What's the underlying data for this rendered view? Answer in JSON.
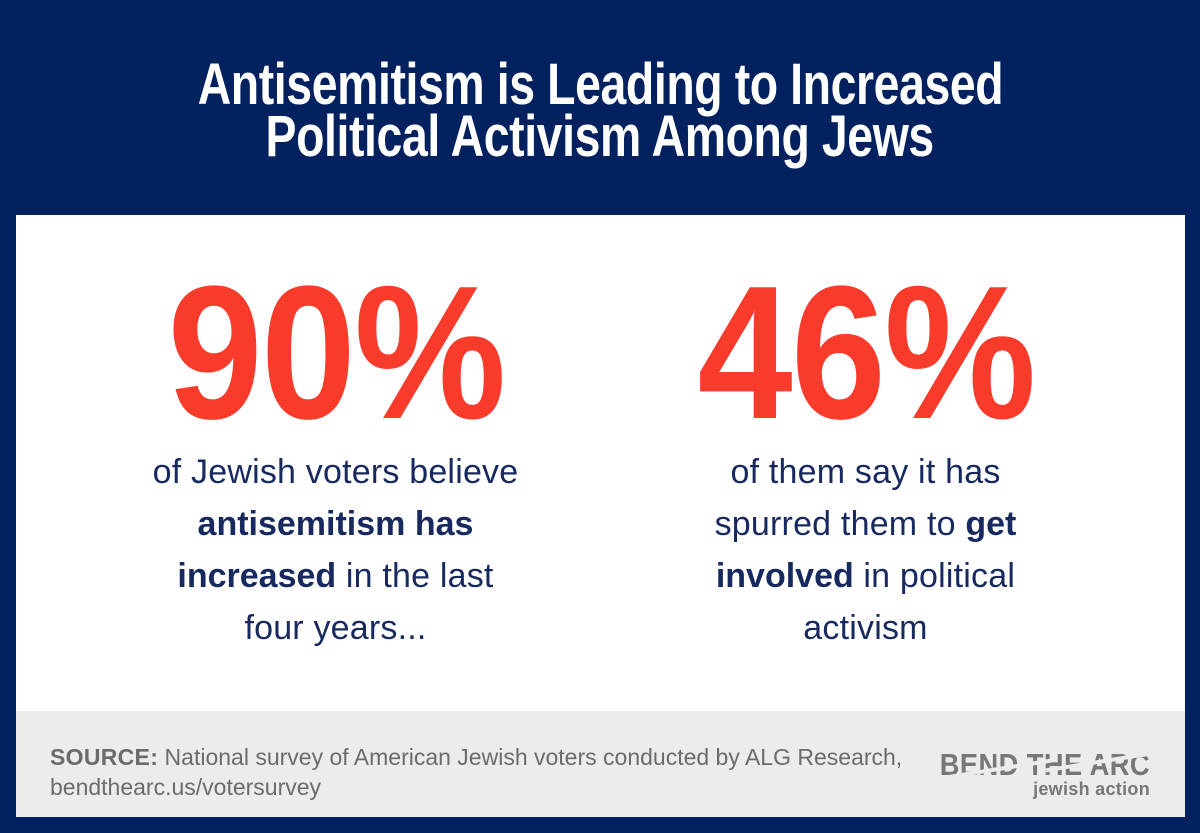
{
  "chart_data": {
    "type": "table",
    "title": "Antisemitism is Leading to Increased Political Activism Among Jews",
    "categories": [
      "Jewish voters who believe antisemitism has increased in the last four years",
      "Of them, say it has spurred them to get involved in political activism"
    ],
    "values": [
      90,
      46
    ],
    "unit": "%",
    "source": "National survey of American Jewish voters conducted by ALG Research, bendthearc.us/votersurvey"
  },
  "title": {
    "line1": "Antisemitism is Leading to Increased",
    "line2": "Political Activism Among Jews"
  },
  "stats": [
    {
      "value": "90%",
      "lines": [
        [
          {
            "t": "of Jewish voters believe",
            "b": false
          }
        ],
        [
          {
            "t": "antisemitism has",
            "b": true
          }
        ],
        [
          {
            "t": "increased",
            "b": true
          },
          {
            "t": " in the last",
            "b": false
          }
        ],
        [
          {
            "t": "four years...",
            "b": false
          }
        ]
      ]
    },
    {
      "value": "46%",
      "lines": [
        [
          {
            "t": "of them say it has",
            "b": false
          }
        ],
        [
          {
            "t": "spurred them to ",
            "b": false
          },
          {
            "t": "get",
            "b": true
          }
        ],
        [
          {
            "t": "involved",
            "b": true
          },
          {
            "t": " in political",
            "b": false
          }
        ],
        [
          {
            "t": "activism",
            "b": false
          }
        ]
      ]
    }
  ],
  "source": {
    "label": "SOURCE:",
    "line1": " National survey of American Jewish voters conducted by ALG Research,",
    "line2": "bendthearc.us/votersurvey"
  },
  "logo": {
    "wordmark": "BEND THE ARC",
    "tagline": "jewish action"
  },
  "colors": {
    "navy": "#03205F",
    "red": "#F93B2B",
    "panel_bg": "#FFFFFF",
    "source_bar_bg": "#ECECEC",
    "source_text": "#6B6B6B",
    "logo_gray": "#777777",
    "title_text": "#FFFFFF",
    "body_text": "#17295E"
  }
}
